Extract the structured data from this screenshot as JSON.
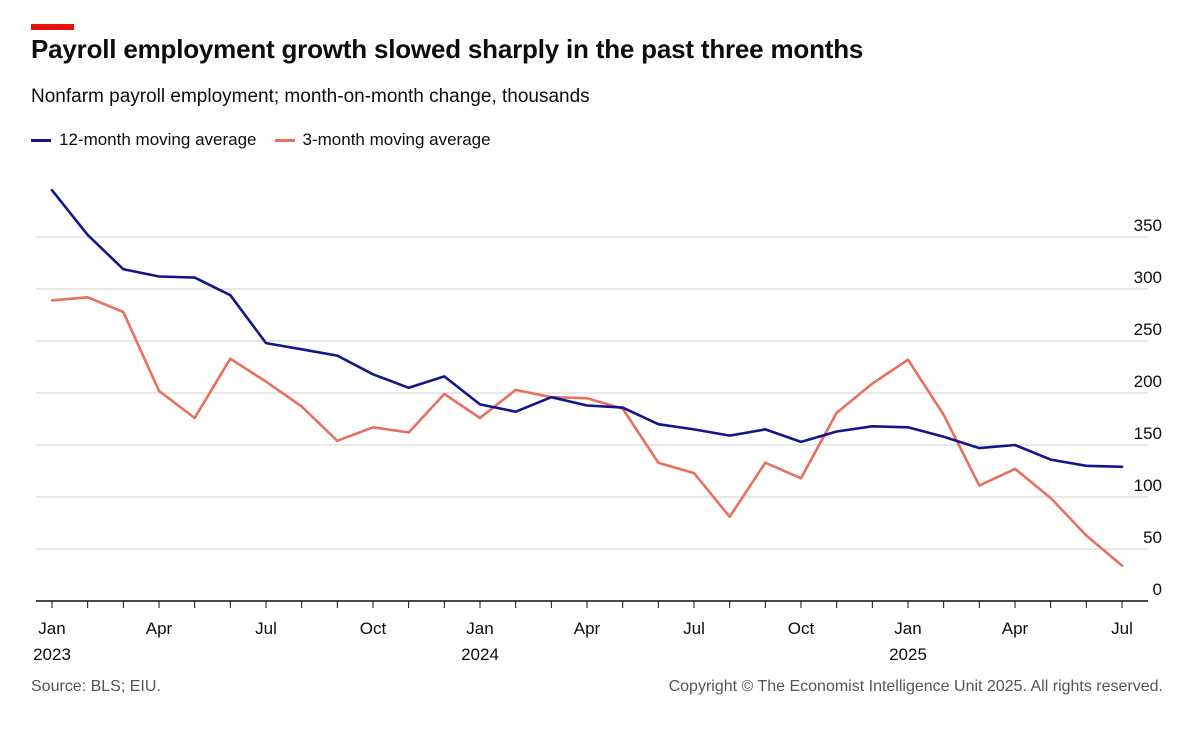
{
  "header": {
    "title": "Payroll employment growth slowed sharply in the past three months",
    "subtitle": "Nonfarm payroll employment; month-on-month change, thousands"
  },
  "footer": {
    "source": "Source: BLS; EIU.",
    "copyright": "Copyright © The Economist Intelligence Unit 2025. All rights reserved."
  },
  "colors": {
    "accent": "#e3120b",
    "series_12m": "#13168a",
    "series_3m": "#e8705d",
    "grid": "#d0d0d0",
    "axis": "#0d0d0d"
  },
  "chart_data": {
    "type": "line",
    "title": "Payroll employment growth slowed sharply in the past three months",
    "subtitle": "Nonfarm payroll employment; month-on-month change, thousands",
    "xlabel": "",
    "ylabel": "",
    "x": [
      "2023-01",
      "2023-02",
      "2023-03",
      "2023-04",
      "2023-05",
      "2023-06",
      "2023-07",
      "2023-08",
      "2023-09",
      "2023-10",
      "2023-11",
      "2023-12",
      "2024-01",
      "2024-02",
      "2024-03",
      "2024-04",
      "2024-05",
      "2024-06",
      "2024-07",
      "2024-08",
      "2024-09",
      "2024-10",
      "2024-11",
      "2024-12",
      "2025-01",
      "2025-02",
      "2025-03",
      "2025-04",
      "2025-05",
      "2025-06",
      "2025-07"
    ],
    "series": [
      {
        "name": "12-month moving average",
        "values": [
          395,
          352,
          319,
          312,
          311,
          294,
          248,
          242,
          236,
          218,
          205,
          216,
          189,
          182,
          196,
          188,
          186,
          170,
          165,
          159,
          165,
          153,
          163,
          168,
          167,
          158,
          147,
          150,
          136,
          130,
          129
        ]
      },
      {
        "name": "3-month moving average",
        "values": [
          289,
          292,
          278,
          202,
          176,
          233,
          211,
          187,
          154,
          167,
          162,
          199,
          176,
          203,
          196,
          195,
          185,
          133,
          123,
          81,
          133,
          118,
          181,
          209,
          232,
          179,
          111,
          127,
          99,
          63,
          34
        ]
      }
    ],
    "x_tick_labels": [
      {
        "month": "Jan",
        "year": "2023"
      },
      {
        "month": "Apr",
        "year": ""
      },
      {
        "month": "Jul",
        "year": ""
      },
      {
        "month": "Oct",
        "year": ""
      },
      {
        "month": "Jan",
        "year": "2024"
      },
      {
        "month": "Apr",
        "year": ""
      },
      {
        "month": "Jul",
        "year": ""
      },
      {
        "month": "Oct",
        "year": ""
      },
      {
        "month": "Jan",
        "year": "2025"
      },
      {
        "month": "Apr",
        "year": ""
      },
      {
        "month": "Jul",
        "year": ""
      }
    ],
    "y_ticks": [
      0,
      50,
      100,
      150,
      200,
      250,
      300,
      350
    ],
    "ylim": [
      0,
      350
    ],
    "grid": true,
    "legend_position": "top-left",
    "y_axis_side": "right"
  }
}
